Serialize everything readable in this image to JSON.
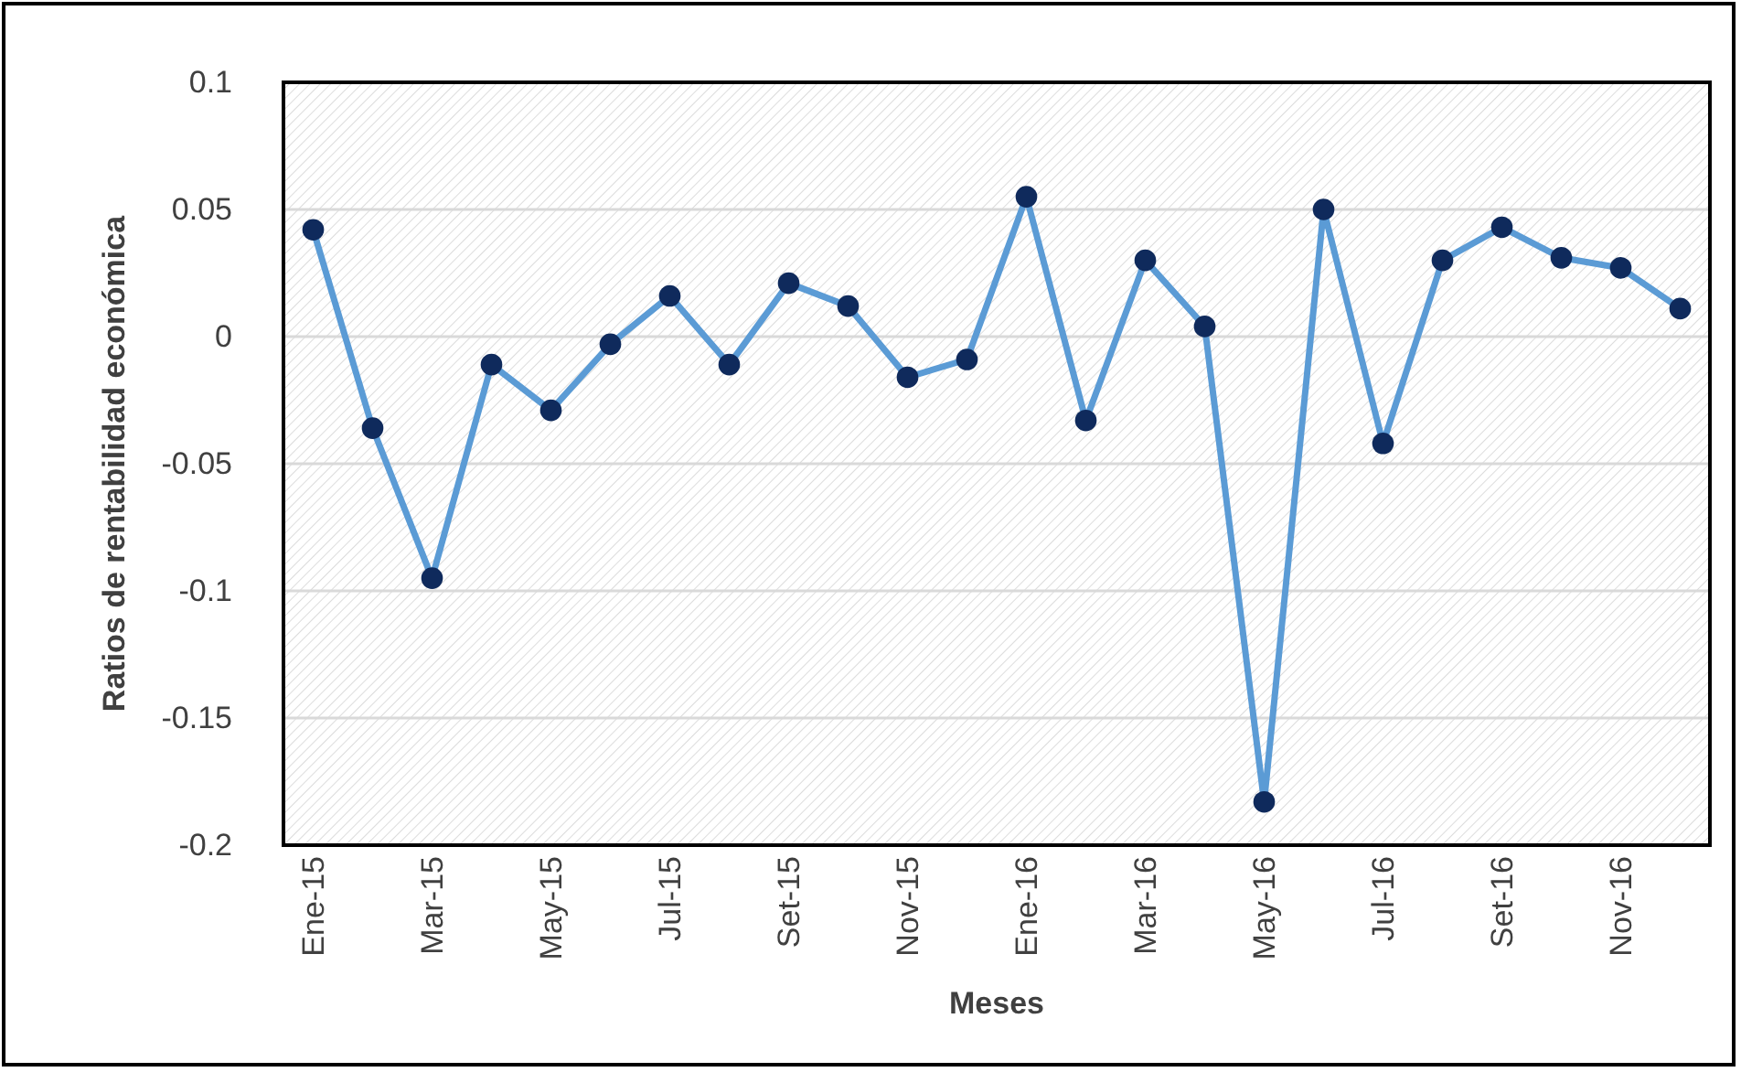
{
  "chart_data": {
    "type": "line",
    "xlabel": "Meses",
    "ylabel": "Ratios de rentabilidad económica",
    "categories": [
      "Ene-15",
      null,
      "Mar-15",
      null,
      "May-15",
      null,
      "Jul-15",
      null,
      "Set-15",
      null,
      "Nov-15",
      null,
      "Ene-16",
      null,
      "Mar-16",
      null,
      "May-16",
      null,
      "Jul-16",
      null,
      "Set-16",
      null,
      "Nov-16",
      null
    ],
    "series": [
      {
        "color": "#5b9bd5",
        "values": [
          0.042,
          -0.036,
          -0.095,
          -0.011,
          -0.029,
          -0.003,
          0.016,
          -0.011,
          0.021,
          0.012,
          -0.016,
          -0.009,
          0.055,
          -0.033,
          0.03,
          0.004,
          -0.183,
          0.05,
          -0.042,
          0.03,
          0.043,
          0.031,
          0.027,
          0.011
        ]
      }
    ],
    "ylim": [
      -0.2,
      0.1
    ],
    "yticks": [
      -0.2,
      -0.15,
      -0.1,
      -0.05,
      0,
      0.05,
      0.1
    ],
    "grid": "y",
    "marker": "circle",
    "line_style": "solid"
  }
}
